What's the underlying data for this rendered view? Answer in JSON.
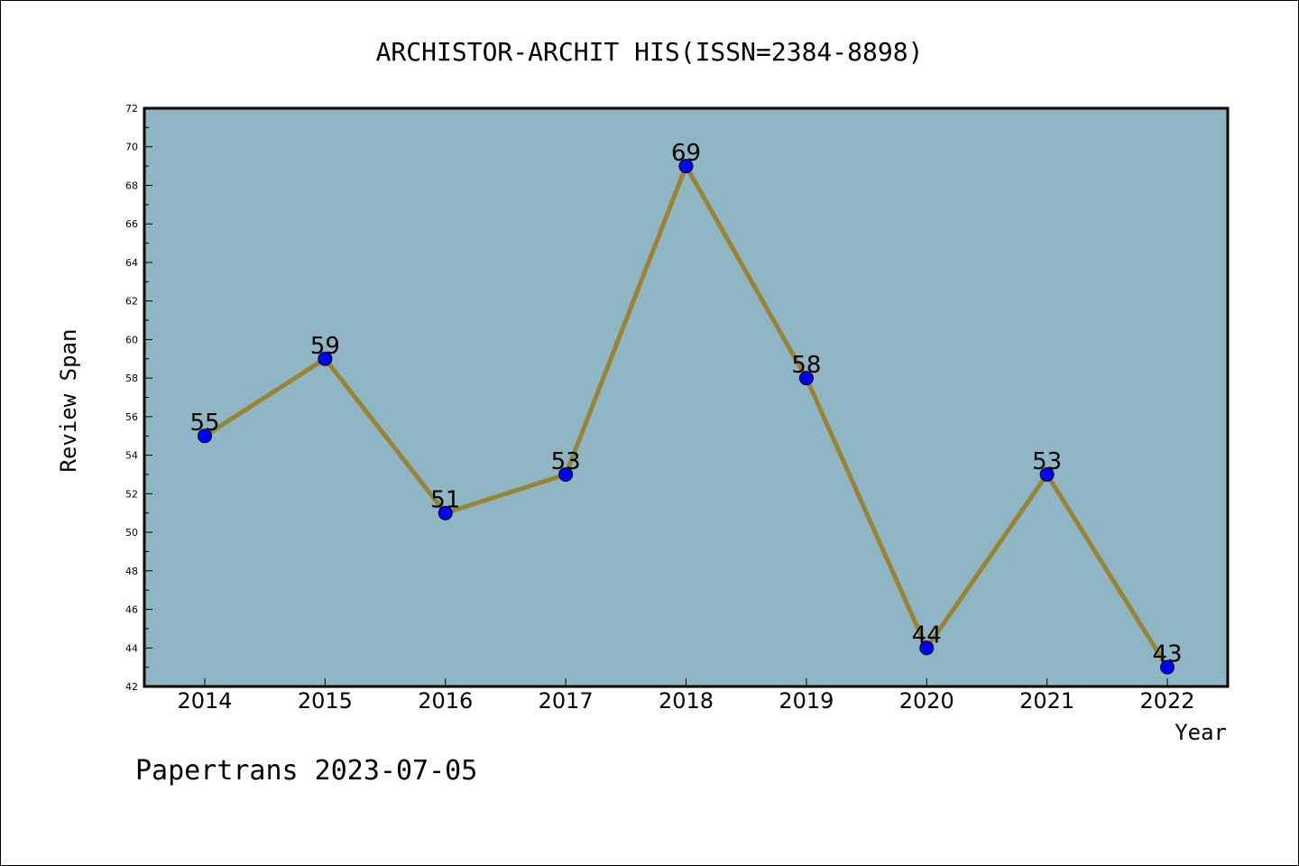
{
  "chart_data": {
    "type": "line",
    "title": "ARCHISTOR-ARCHIT HIS(ISSN=2384-8898)",
    "xlabel": "Year",
    "ylabel": "Review Span",
    "footer": "Papertrans 2023-07-05",
    "categories": [
      "2014",
      "2015",
      "2016",
      "2017",
      "2018",
      "2019",
      "2020",
      "2021",
      "2022"
    ],
    "series": [
      {
        "values": [
          55,
          59,
          51,
          53,
          69,
          58,
          44,
          53,
          43
        ],
        "labels": [
          "55",
          "59",
          "51",
          "53",
          "69",
          "58",
          "44",
          "53",
          "43"
        ]
      }
    ],
    "ylim": [
      42,
      72
    ],
    "yticks": [
      "42",
      "44",
      "46",
      "48",
      "50",
      "52",
      "54",
      "56",
      "58",
      "60",
      "62",
      "64",
      "66",
      "68",
      "70",
      "72"
    ],
    "grid": false,
    "legend": "none",
    "colors": {
      "plot_background": "#8fb6c4",
      "line": "#9a8433",
      "marker": "#0000ff",
      "axes": "#000000"
    }
  }
}
